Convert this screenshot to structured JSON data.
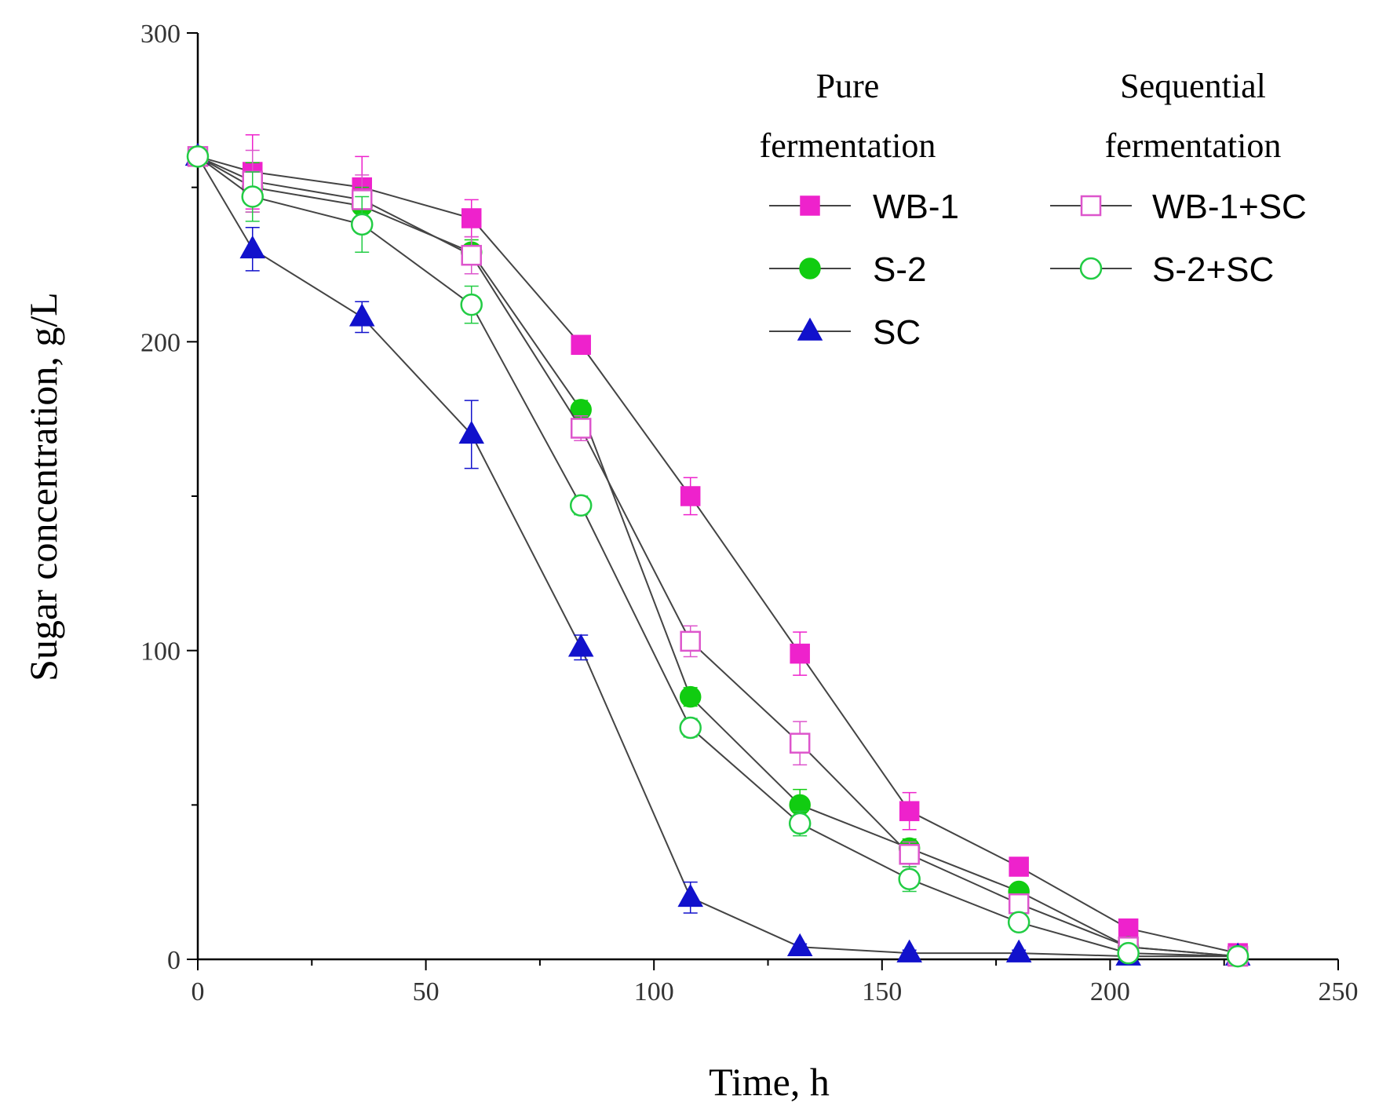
{
  "chart_data": {
    "type": "line",
    "title": "",
    "xlabel": "Time, h",
    "ylabel": "Sugar concentration, g/L",
    "xlim": [
      0,
      250
    ],
    "ylim": [
      0,
      300
    ],
    "xticks": [
      0,
      50,
      100,
      150,
      200,
      250
    ],
    "yticks": [
      0,
      100,
      200,
      300
    ],
    "grid": false,
    "legend": {
      "group_headers": [
        {
          "line1": "Pure",
          "line2": "fermentation"
        },
        {
          "line1": "Sequential",
          "line2": "fermentation"
        }
      ]
    },
    "x": [
      0,
      12,
      36,
      60,
      84,
      108,
      132,
      156,
      180,
      204,
      228
    ],
    "series": [
      {
        "name": "WB-1",
        "group": "Pure fermentation",
        "color": "#ee22cc",
        "marker": "square",
        "filled": true,
        "values": [
          260,
          255,
          250,
          240,
          199,
          150,
          99,
          48,
          30,
          10,
          2
        ],
        "errors": [
          0,
          12,
          10,
          6,
          3,
          6,
          7,
          6,
          3,
          2,
          1
        ]
      },
      {
        "name": "S-2",
        "group": "Pure fermentation",
        "color": "#11cc11",
        "marker": "circle",
        "filled": true,
        "values": [
          260,
          250,
          244,
          229,
          178,
          85,
          50,
          36,
          22,
          4,
          1
        ],
        "errors": [
          0,
          8,
          6,
          4,
          3,
          3,
          5,
          3,
          2,
          1,
          1
        ]
      },
      {
        "name": "SC",
        "group": "Pure fermentation",
        "color": "#1111cc",
        "marker": "triangle",
        "filled": true,
        "values": [
          260,
          230,
          208,
          170,
          101,
          20,
          4,
          2,
          2,
          1,
          1
        ],
        "errors": [
          0,
          7,
          5,
          11,
          4,
          5,
          1,
          1,
          1,
          1,
          1
        ]
      },
      {
        "name": "WB-1+SC",
        "group": "Sequential fermentation",
        "color": "#dd55cc",
        "marker": "square",
        "filled": false,
        "values": [
          260,
          252,
          246,
          228,
          172,
          103,
          70,
          34,
          18,
          4,
          1
        ],
        "errors": [
          0,
          10,
          8,
          6,
          4,
          5,
          7,
          4,
          3,
          1,
          1
        ]
      },
      {
        "name": "S-2+SC",
        "group": "Sequential fermentation",
        "color": "#22cc44",
        "marker": "circle",
        "filled": false,
        "values": [
          260,
          247,
          238,
          212,
          147,
          75,
          44,
          26,
          12,
          2,
          1
        ],
        "errors": [
          0,
          8,
          9,
          6,
          3,
          3,
          4,
          4,
          2,
          1,
          1
        ]
      }
    ]
  }
}
